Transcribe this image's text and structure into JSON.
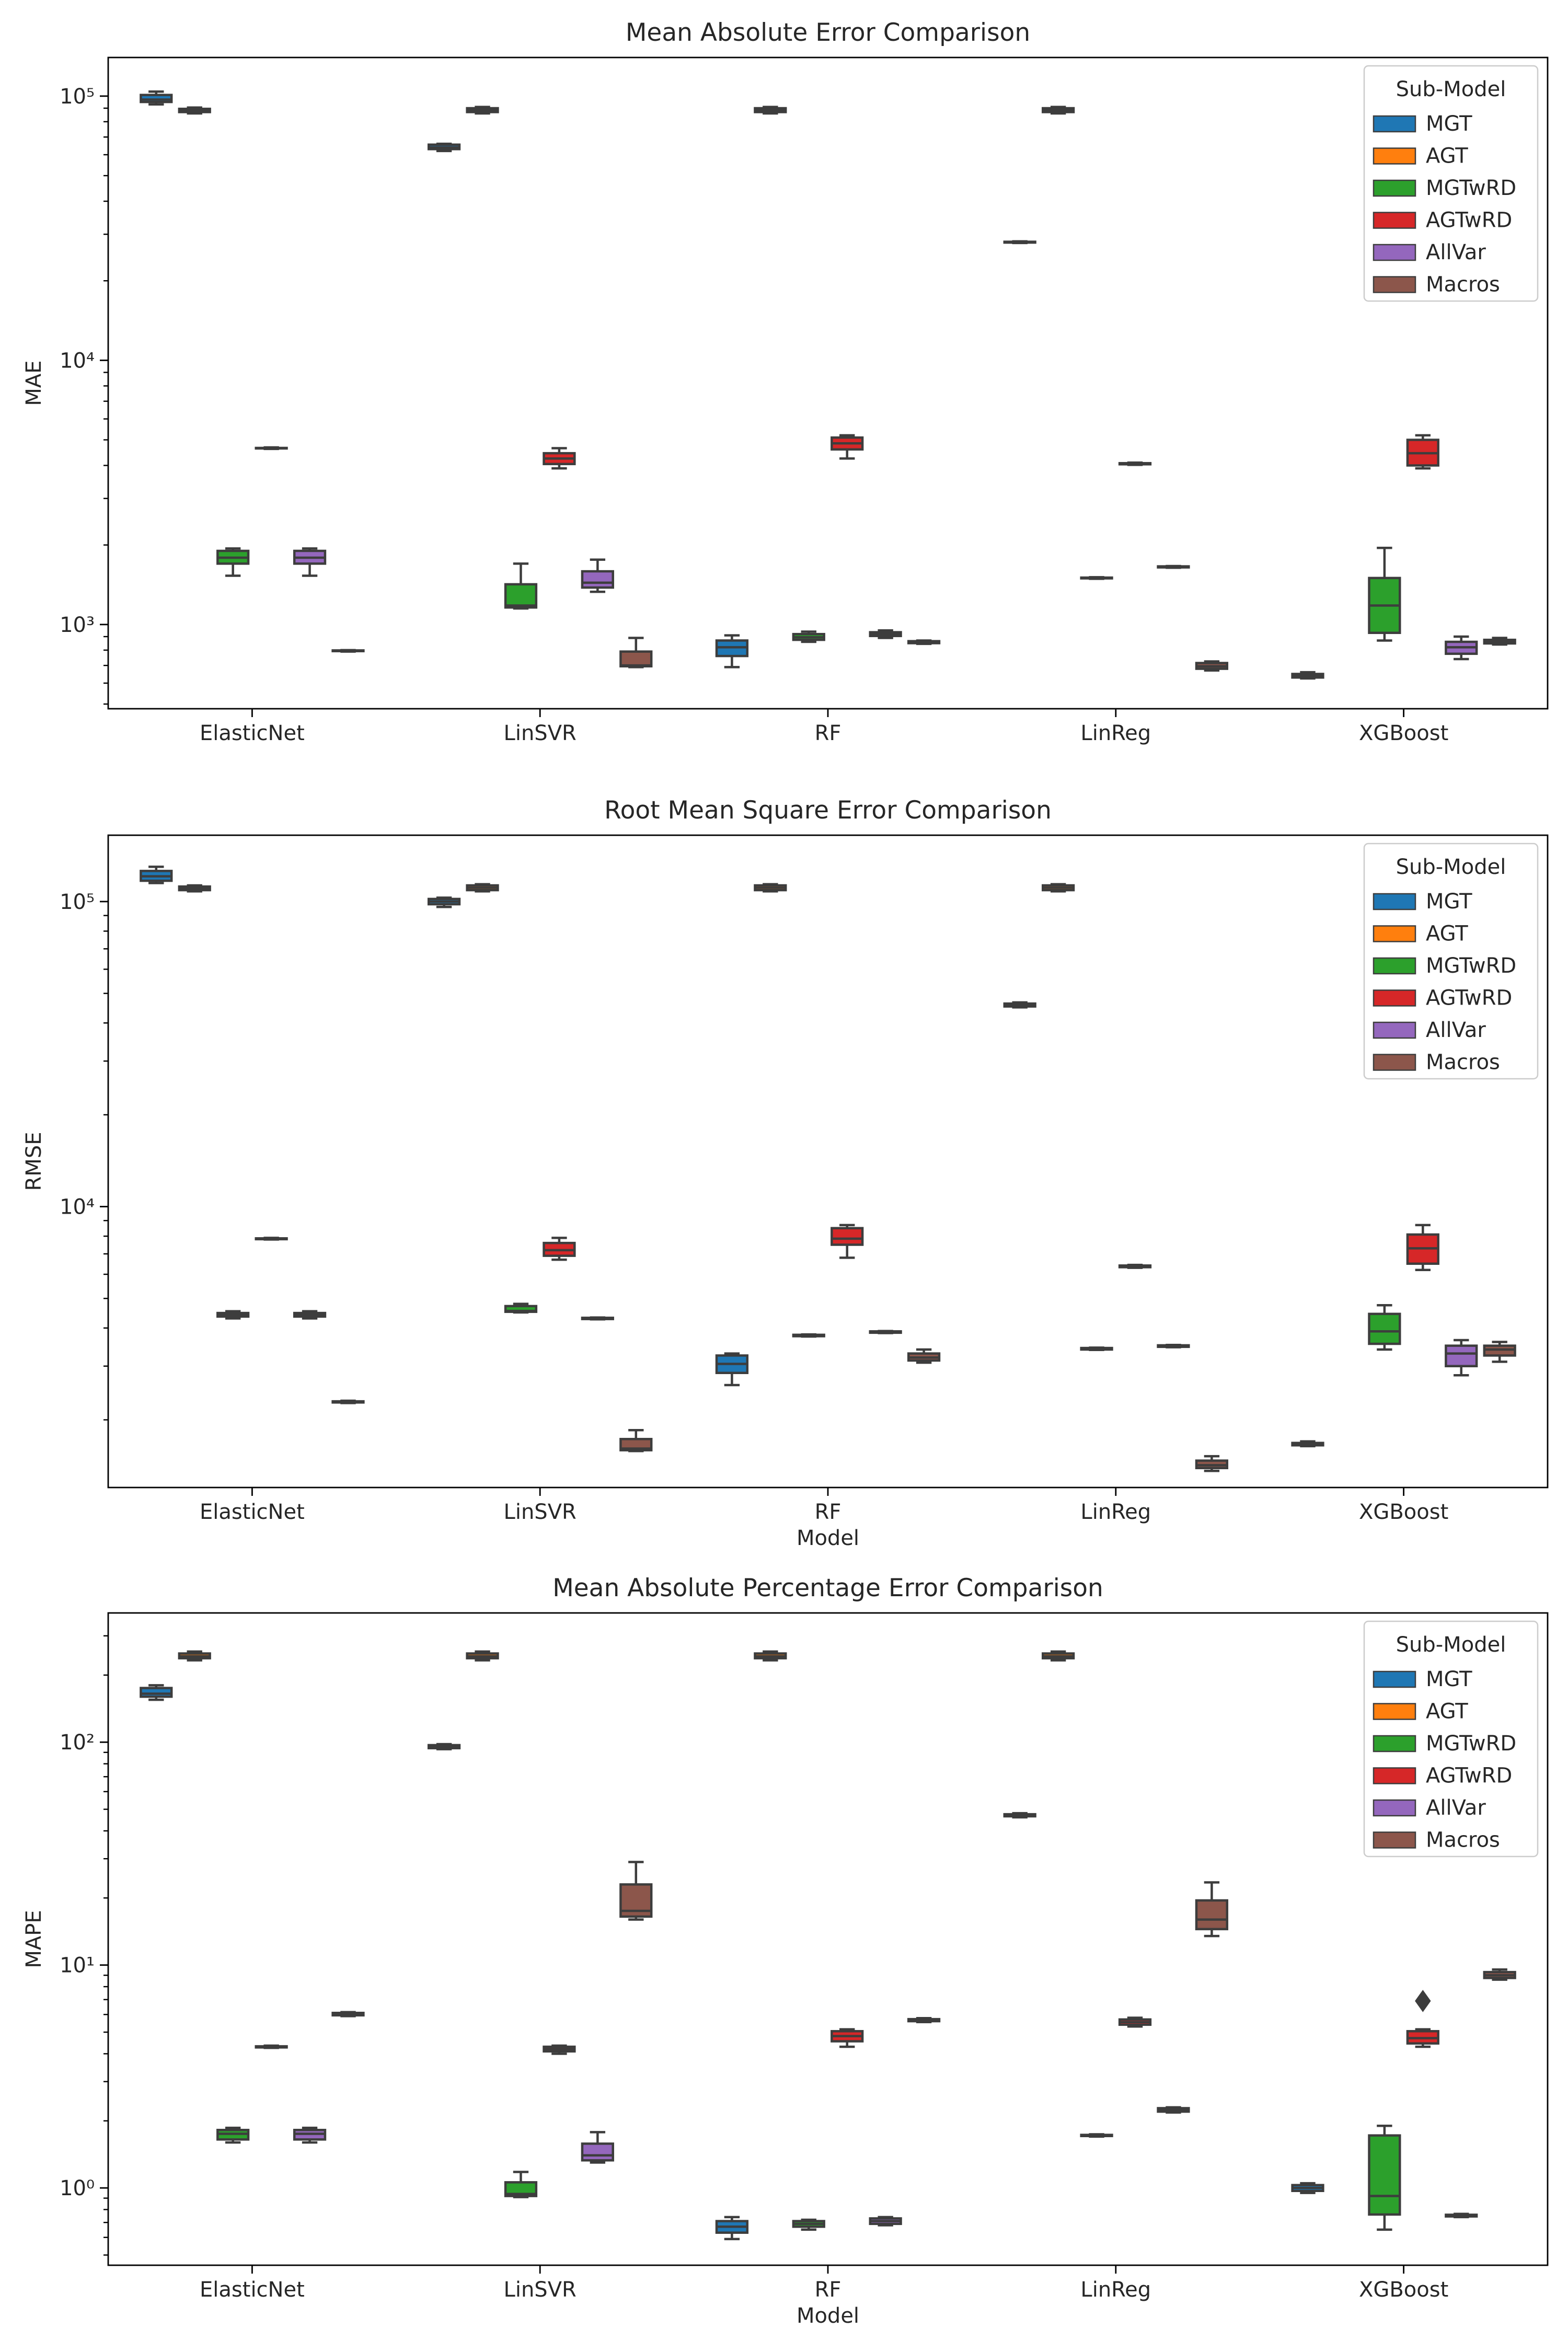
{
  "figure": {
    "legend_title": "Sub-Model",
    "legend_placement": "top-right",
    "series_names": [
      "MGT",
      "AGT",
      "MGTwRD",
      "AGTwRD",
      "AllVar",
      "Macros"
    ],
    "series_colors": [
      "#1f77b4",
      "#ff7f0e",
      "#2ca02c",
      "#d62728",
      "#9467bd",
      "#8c564b"
    ],
    "box_edge_color": "#3d3d3d"
  },
  "chart_data": [
    {
      "type": "box",
      "title": "Mean Absolute Error Comparison",
      "xlabel": "",
      "ylabel": "MAE",
      "yscale": "log",
      "ylim": [
        480,
        140000
      ],
      "ytick_values": [
        1000,
        10000,
        100000
      ],
      "ytick_labels": [
        "10³",
        "10⁴",
        "10⁵"
      ],
      "categories": [
        "ElasticNet",
        "LinSVR",
        "RF",
        "LinReg",
        "XGBoost"
      ],
      "boxes": [
        {
          "category": "ElasticNet",
          "series": "MGT",
          "whislo": 93000,
          "q1": 95000,
          "median": 97000,
          "q3": 101000,
          "whishi": 104000
        },
        {
          "category": "ElasticNet",
          "series": "AGT",
          "whislo": 86000,
          "q1": 87000,
          "median": 88000,
          "q3": 89500,
          "whishi": 90500
        },
        {
          "category": "ElasticNet",
          "series": "MGTwRD",
          "whislo": 1530,
          "q1": 1700,
          "median": 1790,
          "q3": 1900,
          "whishi": 1940
        },
        {
          "category": "ElasticNet",
          "series": "AGTwRD",
          "whislo": 4620,
          "q1": 4640,
          "median": 4650,
          "q3": 4660,
          "whishi": 4680
        },
        {
          "category": "ElasticNet",
          "series": "AllVar",
          "whislo": 1530,
          "q1": 1700,
          "median": 1790,
          "q3": 1900,
          "whishi": 1940
        },
        {
          "category": "ElasticNet",
          "series": "Macros",
          "whislo": 790,
          "q1": 793,
          "median": 795,
          "q3": 798,
          "whishi": 800
        },
        {
          "category": "LinSVR",
          "series": "MGT",
          "whislo": 62000,
          "q1": 63000,
          "median": 64000,
          "q3": 65500,
          "whishi": 66000
        },
        {
          "category": "LinSVR",
          "series": "AGT",
          "whislo": 86000,
          "q1": 87000,
          "median": 88500,
          "q3": 90000,
          "whishi": 91000
        },
        {
          "category": "LinSVR",
          "series": "MGTwRD",
          "whislo": 1150,
          "q1": 1160,
          "median": 1180,
          "q3": 1420,
          "whishi": 1700
        },
        {
          "category": "LinSVR",
          "series": "AGTwRD",
          "whislo": 3900,
          "q1": 4050,
          "median": 4250,
          "q3": 4450,
          "whishi": 4650
        },
        {
          "category": "LinSVR",
          "series": "AllVar",
          "whislo": 1330,
          "q1": 1380,
          "median": 1440,
          "q3": 1590,
          "whishi": 1760
        },
        {
          "category": "LinSVR",
          "series": "Macros",
          "whislo": 690,
          "q1": 695,
          "median": 700,
          "q3": 790,
          "whishi": 890
        },
        {
          "category": "RF",
          "series": "MGT",
          "whislo": 690,
          "q1": 760,
          "median": 820,
          "q3": 870,
          "whishi": 910
        },
        {
          "category": "RF",
          "series": "AGT",
          "whislo": 86000,
          "q1": 87000,
          "median": 88500,
          "q3": 90000,
          "whishi": 91000
        },
        {
          "category": "RF",
          "series": "MGTwRD",
          "whislo": 860,
          "q1": 875,
          "median": 895,
          "q3": 920,
          "whishi": 940
        },
        {
          "category": "RF",
          "series": "AGTwRD",
          "whislo": 4250,
          "q1": 4600,
          "median": 4850,
          "q3": 5100,
          "whishi": 5200
        },
        {
          "category": "RF",
          "series": "AllVar",
          "whislo": 890,
          "q1": 905,
          "median": 920,
          "q3": 935,
          "whishi": 950
        },
        {
          "category": "RF",
          "series": "Macros",
          "whislo": 845,
          "q1": 850,
          "median": 858,
          "q3": 865,
          "whishi": 870
        },
        {
          "category": "LinReg",
          "series": "MGT",
          "whislo": 27800,
          "q1": 27900,
          "median": 28000,
          "q3": 28100,
          "whishi": 28200
        },
        {
          "category": "LinReg",
          "series": "AGT",
          "whislo": 86000,
          "q1": 87000,
          "median": 88500,
          "q3": 90000,
          "whishi": 91000
        },
        {
          "category": "LinReg",
          "series": "MGTwRD",
          "whislo": 1490,
          "q1": 1495,
          "median": 1500,
          "q3": 1505,
          "whishi": 1510
        },
        {
          "category": "LinReg",
          "series": "AGTwRD",
          "whislo": 4020,
          "q1": 4040,
          "median": 4060,
          "q3": 4080,
          "whishi": 4100
        },
        {
          "category": "LinReg",
          "series": "AllVar",
          "whislo": 1640,
          "q1": 1645,
          "median": 1650,
          "q3": 1660,
          "whishi": 1665
        },
        {
          "category": "LinReg",
          "series": "Macros",
          "whislo": 670,
          "q1": 680,
          "median": 695,
          "q3": 715,
          "whishi": 725
        },
        {
          "category": "XGBoost",
          "series": "MGT",
          "whislo": 625,
          "q1": 630,
          "median": 638,
          "q3": 650,
          "whishi": 660
        },
        {
          "category": "XGBoost",
          "series": "MGTwRD",
          "whislo": 870,
          "q1": 930,
          "median": 1180,
          "q3": 1500,
          "whishi": 1950
        },
        {
          "category": "XGBoost",
          "series": "AGTwRD",
          "whislo": 3900,
          "q1": 4000,
          "median": 4450,
          "q3": 5000,
          "whishi": 5200
        },
        {
          "category": "XGBoost",
          "series": "AllVar",
          "whislo": 740,
          "q1": 775,
          "median": 820,
          "q3": 860,
          "whishi": 900
        },
        {
          "category": "XGBoost",
          "series": "Macros",
          "whislo": 840,
          "q1": 848,
          "median": 858,
          "q3": 875,
          "whishi": 890
        }
      ],
      "outliers": []
    },
    {
      "type": "box",
      "title": "Root Mean Square Error Comparison",
      "xlabel": "Model",
      "ylabel": "RMSE",
      "yscale": "log",
      "ylim": [
        1200,
        165000
      ],
      "ytick_values": [
        10000,
        100000
      ],
      "ytick_labels": [
        "10⁴",
        "10⁵"
      ],
      "categories": [
        "ElasticNet",
        "LinSVR",
        "RF",
        "LinReg",
        "XGBoost"
      ],
      "boxes": [
        {
          "category": "ElasticNet",
          "series": "MGT",
          "whislo": 115000,
          "q1": 117000,
          "median": 121000,
          "q3": 126000,
          "whishi": 130000
        },
        {
          "category": "ElasticNet",
          "series": "AGT",
          "whislo": 108000,
          "q1": 109000,
          "median": 110500,
          "q3": 112000,
          "whishi": 113000
        },
        {
          "category": "ElasticNet",
          "series": "MGTwRD",
          "whislo": 4300,
          "q1": 4360,
          "median": 4420,
          "q3": 4480,
          "whishi": 4540
        },
        {
          "category": "ElasticNet",
          "series": "AGTwRD",
          "whislo": 7800,
          "q1": 7820,
          "median": 7850,
          "q3": 7870,
          "whishi": 7900
        },
        {
          "category": "ElasticNet",
          "series": "AllVar",
          "whislo": 4300,
          "q1": 4360,
          "median": 4420,
          "q3": 4480,
          "whishi": 4540
        },
        {
          "category": "ElasticNet",
          "series": "Macros",
          "whislo": 2270,
          "q1": 2280,
          "median": 2290,
          "q3": 2300,
          "whishi": 2310
        },
        {
          "category": "LinSVR",
          "series": "MGT",
          "whislo": 96000,
          "q1": 98000,
          "median": 100000,
          "q3": 102000,
          "whishi": 103000
        },
        {
          "category": "LinSVR",
          "series": "AGT",
          "whislo": 108000,
          "q1": 109000,
          "median": 111000,
          "q3": 113000,
          "whishi": 114000
        },
        {
          "category": "LinSVR",
          "series": "MGTwRD",
          "whislo": 4500,
          "q1": 4520,
          "median": 4550,
          "q3": 4720,
          "whishi": 4800
        },
        {
          "category": "LinSVR",
          "series": "AGTwRD",
          "whislo": 6700,
          "q1": 6900,
          "median": 7200,
          "q3": 7600,
          "whishi": 7900
        },
        {
          "category": "LinSVR",
          "series": "AllVar",
          "whislo": 4270,
          "q1": 4280,
          "median": 4300,
          "q3": 4320,
          "whishi": 4330
        },
        {
          "category": "LinSVR",
          "series": "Macros",
          "whislo": 1580,
          "q1": 1590,
          "median": 1610,
          "q3": 1730,
          "whishi": 1850
        },
        {
          "category": "RF",
          "series": "MGT",
          "whislo": 2600,
          "q1": 2850,
          "median": 3050,
          "q3": 3250,
          "whishi": 3300
        },
        {
          "category": "RF",
          "series": "AGT",
          "whislo": 108000,
          "q1": 109000,
          "median": 111000,
          "q3": 113000,
          "whishi": 114000
        },
        {
          "category": "RF",
          "series": "MGTwRD",
          "whislo": 3750,
          "q1": 3760,
          "median": 3780,
          "q3": 3800,
          "whishi": 3810
        },
        {
          "category": "RF",
          "series": "AGTwRD",
          "whislo": 6800,
          "q1": 7500,
          "median": 7850,
          "q3": 8500,
          "whishi": 8700
        },
        {
          "category": "RF",
          "series": "AllVar",
          "whislo": 3850,
          "q1": 3860,
          "median": 3880,
          "q3": 3900,
          "whishi": 3910
        },
        {
          "category": "RF",
          "series": "Macros",
          "whislo": 3080,
          "q1": 3130,
          "median": 3200,
          "q3": 3300,
          "whishi": 3400
        },
        {
          "category": "LinReg",
          "series": "MGT",
          "whislo": 45000,
          "q1": 45300,
          "median": 45800,
          "q3": 46300,
          "whishi": 46700
        },
        {
          "category": "LinReg",
          "series": "AGT",
          "whislo": 108000,
          "q1": 109000,
          "median": 111000,
          "q3": 113000,
          "whishi": 114000
        },
        {
          "category": "LinReg",
          "series": "MGTwRD",
          "whislo": 3390,
          "q1": 3400,
          "median": 3420,
          "q3": 3440,
          "whishi": 3450
        },
        {
          "category": "LinReg",
          "series": "AGTwRD",
          "whislo": 6300,
          "q1": 6330,
          "median": 6370,
          "q3": 6410,
          "whishi": 6440
        },
        {
          "category": "LinReg",
          "series": "AllVar",
          "whislo": 3460,
          "q1": 3470,
          "median": 3490,
          "q3": 3510,
          "whishi": 3520
        },
        {
          "category": "LinReg",
          "series": "Macros",
          "whislo": 1360,
          "q1": 1390,
          "median": 1420,
          "q3": 1470,
          "whishi": 1520
        },
        {
          "category": "XGBoost",
          "series": "MGT",
          "whislo": 1640,
          "q1": 1650,
          "median": 1665,
          "q3": 1680,
          "whishi": 1700
        },
        {
          "category": "XGBoost",
          "series": "MGTwRD",
          "whislo": 3400,
          "q1": 3550,
          "median": 3900,
          "q3": 4450,
          "whishi": 4750
        },
        {
          "category": "XGBoost",
          "series": "AGTwRD",
          "whislo": 6200,
          "q1": 6500,
          "median": 7300,
          "q3": 8100,
          "whishi": 8700
        },
        {
          "category": "XGBoost",
          "series": "AllVar",
          "whislo": 2800,
          "q1": 3000,
          "median": 3300,
          "q3": 3500,
          "whishi": 3650
        },
        {
          "category": "XGBoost",
          "series": "Macros",
          "whislo": 3100,
          "q1": 3250,
          "median": 3400,
          "q3": 3500,
          "whishi": 3600
        }
      ],
      "outliers": []
    },
    {
      "type": "box",
      "title": "Mean Absolute Percentage Error Comparison",
      "xlabel": "Model",
      "ylabel": "MAPE",
      "yscale": "log",
      "ylim": [
        0.45,
        380
      ],
      "ytick_values": [
        1,
        10,
        100
      ],
      "ytick_labels": [
        "10⁰",
        "10¹",
        "10²"
      ],
      "categories": [
        "ElasticNet",
        "LinSVR",
        "RF",
        "LinReg",
        "XGBoost"
      ],
      "boxes": [
        {
          "category": "ElasticNet",
          "series": "MGT",
          "whislo": 155,
          "q1": 160,
          "median": 165,
          "q3": 175,
          "whishi": 180
        },
        {
          "category": "ElasticNet",
          "series": "AGT",
          "whislo": 233,
          "q1": 238,
          "median": 243,
          "q3": 250,
          "whishi": 255
        },
        {
          "category": "ElasticNet",
          "series": "MGTwRD",
          "whislo": 1.6,
          "q1": 1.65,
          "median": 1.75,
          "q3": 1.82,
          "whishi": 1.86
        },
        {
          "category": "ElasticNet",
          "series": "AGTwRD",
          "whislo": 4.25,
          "q1": 4.27,
          "median": 4.3,
          "q3": 4.32,
          "whishi": 4.35
        },
        {
          "category": "ElasticNet",
          "series": "AllVar",
          "whislo": 1.6,
          "q1": 1.65,
          "median": 1.75,
          "q3": 1.82,
          "whishi": 1.86
        },
        {
          "category": "ElasticNet",
          "series": "Macros",
          "whislo": 5.9,
          "q1": 5.95,
          "median": 6.02,
          "q3": 6.1,
          "whishi": 6.15
        },
        {
          "category": "LinSVR",
          "series": "MGT",
          "whislo": 93,
          "q1": 94,
          "median": 95.5,
          "q3": 97,
          "whishi": 98
        },
        {
          "category": "LinSVR",
          "series": "AGT",
          "whislo": 233,
          "q1": 238,
          "median": 243,
          "q3": 250,
          "whishi": 255
        },
        {
          "category": "LinSVR",
          "series": "MGTwRD",
          "whislo": 0.91,
          "q1": 0.92,
          "median": 0.94,
          "q3": 1.06,
          "whishi": 1.18
        },
        {
          "category": "LinSVR",
          "series": "AGTwRD",
          "whislo": 4.0,
          "q1": 4.1,
          "median": 4.2,
          "q3": 4.3,
          "whishi": 4.35
        },
        {
          "category": "LinSVR",
          "series": "AllVar",
          "whislo": 1.3,
          "q1": 1.33,
          "median": 1.4,
          "q3": 1.58,
          "whishi": 1.78
        },
        {
          "category": "LinSVR",
          "series": "Macros",
          "whislo": 16,
          "q1": 16.5,
          "median": 17.5,
          "q3": 23,
          "whishi": 29
        },
        {
          "category": "RF",
          "series": "MGT",
          "whislo": 0.59,
          "q1": 0.63,
          "median": 0.67,
          "q3": 0.71,
          "whishi": 0.74
        },
        {
          "category": "RF",
          "series": "AGT",
          "whislo": 233,
          "q1": 238,
          "median": 243,
          "q3": 250,
          "whishi": 255
        },
        {
          "category": "RF",
          "series": "MGTwRD",
          "whislo": 0.65,
          "q1": 0.67,
          "median": 0.69,
          "q3": 0.71,
          "whishi": 0.72
        },
        {
          "category": "RF",
          "series": "AGTwRD",
          "whislo": 4.3,
          "q1": 4.55,
          "median": 4.8,
          "q3": 5.05,
          "whishi": 5.15
        },
        {
          "category": "RF",
          "series": "AllVar",
          "whislo": 0.68,
          "q1": 0.69,
          "median": 0.71,
          "q3": 0.73,
          "whishi": 0.74
        },
        {
          "category": "RF",
          "series": "Macros",
          "whislo": 5.55,
          "q1": 5.6,
          "median": 5.65,
          "q3": 5.72,
          "whishi": 5.78
        },
        {
          "category": "LinReg",
          "series": "MGT",
          "whislo": 46,
          "q1": 46.5,
          "median": 47,
          "q3": 47.5,
          "whishi": 48
        },
        {
          "category": "LinReg",
          "series": "AGT",
          "whislo": 233,
          "q1": 238,
          "median": 243,
          "q3": 250,
          "whishi": 255
        },
        {
          "category": "LinReg",
          "series": "MGTwRD",
          "whislo": 1.7,
          "q1": 1.71,
          "median": 1.72,
          "q3": 1.73,
          "whishi": 1.74
        },
        {
          "category": "LinReg",
          "series": "AGTwRD",
          "whislo": 5.3,
          "q1": 5.4,
          "median": 5.55,
          "q3": 5.7,
          "whishi": 5.8
        },
        {
          "category": "LinReg",
          "series": "AllVar",
          "whislo": 2.18,
          "q1": 2.2,
          "median": 2.24,
          "q3": 2.28,
          "whishi": 2.3
        },
        {
          "category": "LinReg",
          "series": "Macros",
          "whislo": 13.5,
          "q1": 14.5,
          "median": 16,
          "q3": 19.5,
          "whishi": 23.5
        },
        {
          "category": "XGBoost",
          "series": "MGT",
          "whislo": 0.95,
          "q1": 0.97,
          "median": 1.0,
          "q3": 1.03,
          "whishi": 1.05
        },
        {
          "category": "XGBoost",
          "series": "MGTwRD",
          "whislo": 0.65,
          "q1": 0.76,
          "median": 0.92,
          "q3": 1.72,
          "whishi": 1.9
        },
        {
          "category": "XGBoost",
          "series": "AGTwRD",
          "whislo": 4.3,
          "q1": 4.45,
          "median": 4.7,
          "q3": 5.05,
          "whishi": 5.15
        },
        {
          "category": "XGBoost",
          "series": "AllVar",
          "whislo": 0.74,
          "q1": 0.745,
          "median": 0.75,
          "q3": 0.758,
          "whishi": 0.765
        },
        {
          "category": "XGBoost",
          "series": "Macros",
          "whislo": 8.6,
          "q1": 8.75,
          "median": 9.0,
          "q3": 9.3,
          "whishi": 9.55
        }
      ],
      "outliers": [
        {
          "category": "XGBoost",
          "series": "AGTwRD",
          "value": 6.9
        }
      ]
    }
  ]
}
